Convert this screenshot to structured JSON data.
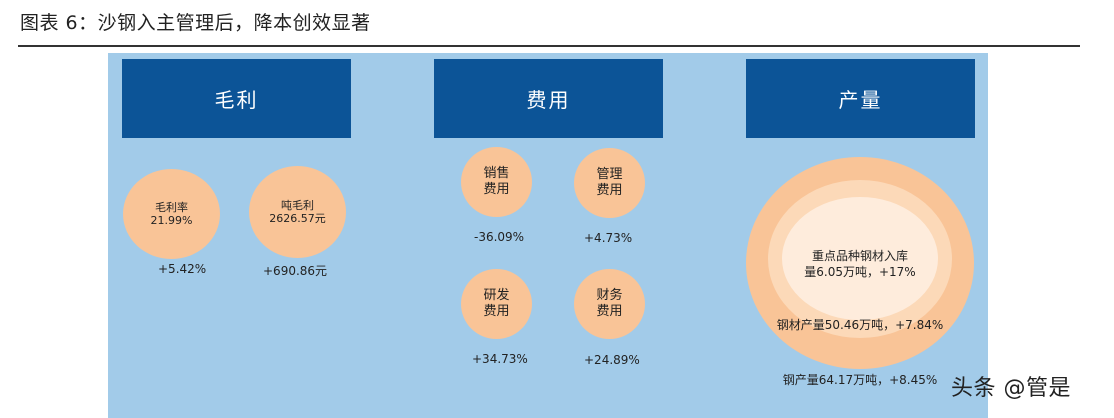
{
  "title": "图表 6：沙钢入主管理后，降本创效显著",
  "sections": {
    "gross_profit": {
      "header": "毛利",
      "items": [
        {
          "line1": "毛利率",
          "line2": "21.99%",
          "change": "+5.42%"
        },
        {
          "line1": "吨毛利",
          "line2": "2626.57元",
          "change": "+690.86元"
        }
      ]
    },
    "expenses": {
      "header": "费用",
      "items": [
        {
          "line1": "销售",
          "line2": "费用",
          "change": "-36.09%"
        },
        {
          "line1": "管理",
          "line2": "费用",
          "change": "+4.73%"
        },
        {
          "line1": "研发",
          "line2": "费用",
          "change": "+34.73%"
        },
        {
          "line1": "财务",
          "line2": "费用",
          "change": "+24.89%"
        }
      ]
    },
    "output": {
      "header": "产量",
      "inner_line1": "重点品种钢材入库",
      "inner_line2": "量6.05万吨，+17%",
      "middle": "钢材产量50.46万吨，+7.84%",
      "outer": "钢产量64.17万吨，+8.45%"
    }
  },
  "watermark": "头条 @管是",
  "colors": {
    "panel": "#a2cbe9",
    "header": "#0c5497",
    "circle": "#f9c497"
  }
}
